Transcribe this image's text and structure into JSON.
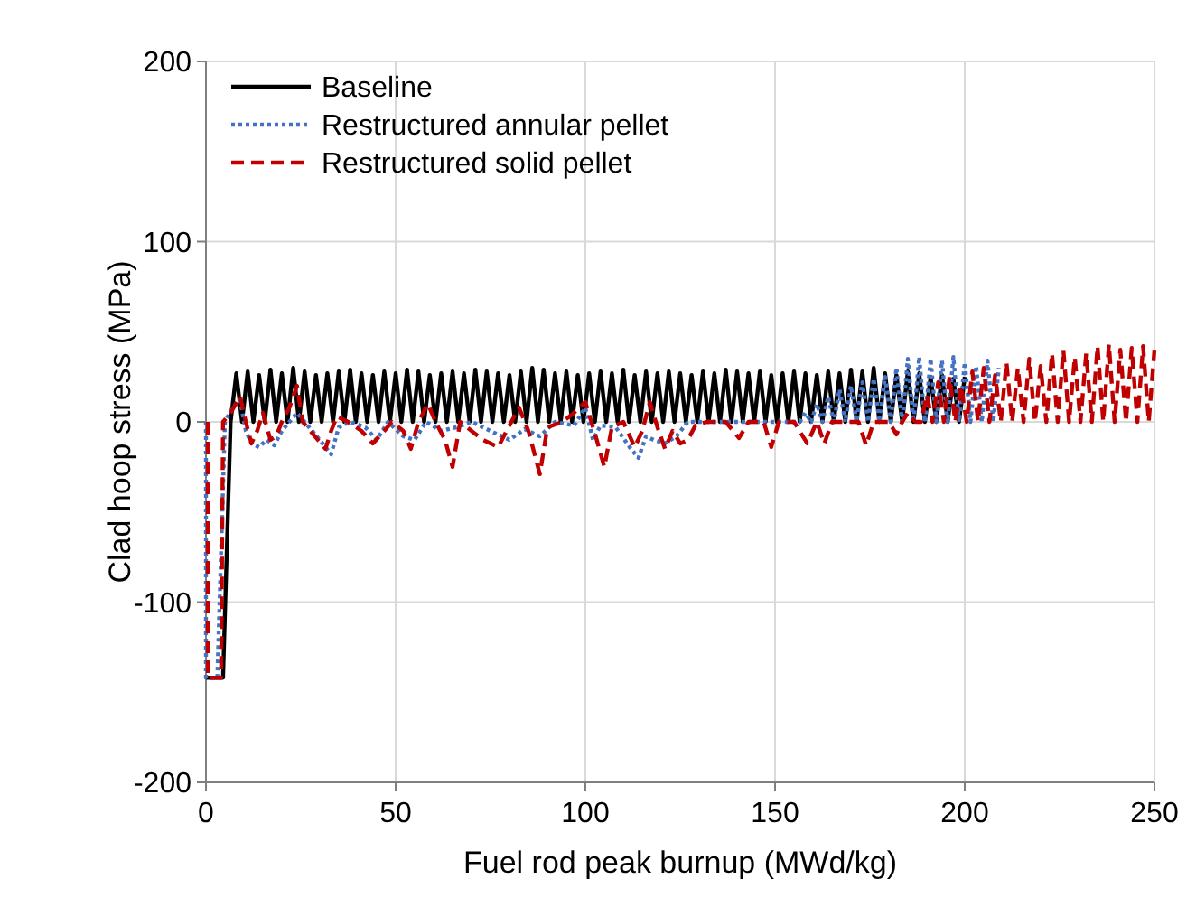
{
  "chart_data": {
    "type": "line",
    "xlabel": "Fuel rod peak burnup (MWd/kg)",
    "ylabel": "Clad hoop stress (MPa)",
    "xlim": [
      0,
      250
    ],
    "xticks": [
      0,
      50,
      100,
      150,
      200,
      250
    ],
    "ylim": [
      -200,
      200
    ],
    "yticks": [
      -200,
      -100,
      0,
      100,
      200
    ],
    "grid": true,
    "legend": "top left",
    "series": [
      {
        "name": "Baseline",
        "color": "#000000",
        "line_style": "solid",
        "x": [
          0,
          4.5,
          6.5,
          8,
          9.5,
          11,
          12.5,
          14,
          15.5,
          17,
          18.5,
          20,
          21.5,
          23,
          24.5,
          26,
          27.5,
          29,
          30.5,
          32,
          33.5,
          35,
          36.5,
          38,
          39.5,
          41,
          42.5,
          44,
          45.5,
          47,
          48.5,
          50,
          51.5,
          53,
          54.5,
          56,
          57.5,
          59,
          60.5,
          62,
          63.5,
          65,
          66.5,
          68,
          69.5,
          71,
          72.5,
          74,
          75.5,
          77,
          78.5,
          80,
          81.5,
          83,
          84.5,
          86,
          87.5,
          89,
          90.5,
          92,
          93.5,
          95,
          96.5,
          98,
          99.5,
          101,
          102.5,
          104,
          105.5,
          107,
          108.5,
          110,
          111.5,
          113,
          114.5,
          116,
          117.5,
          119,
          120.5,
          122,
          123.5,
          125,
          126.5,
          128,
          129.5,
          131,
          132.5,
          134,
          135.5,
          137,
          138.5,
          140,
          141.5,
          143,
          144.5,
          146,
          147.5,
          149,
          150.5,
          152,
          153.5,
          155,
          156.5,
          158,
          159.5,
          161,
          162.5,
          164,
          165.5,
          167,
          168.5,
          170,
          171.5,
          173,
          174.5,
          176,
          177.5,
          179,
          180.5,
          182,
          183.5,
          185,
          186.5,
          188,
          189.5,
          191,
          192.5,
          194,
          195.5,
          197,
          198.5,
          200
        ],
        "values": [
          -142,
          -142,
          0,
          27,
          0,
          28,
          0,
          26,
          0,
          29,
          0,
          27,
          0,
          30,
          0,
          28,
          0,
          26,
          0,
          27,
          0,
          28,
          0,
          29,
          0,
          27,
          0,
          26,
          0,
          28,
          0,
          27,
          0,
          29,
          0,
          28,
          0,
          26,
          0,
          27,
          0,
          28,
          0,
          27,
          0,
          29,
          0,
          28,
          0,
          27,
          0,
          26,
          0,
          28,
          0,
          30,
          0,
          29,
          0,
          27,
          0,
          28,
          0,
          26,
          0,
          27,
          0,
          28,
          0,
          27,
          0,
          29,
          0,
          26,
          0,
          28,
          0,
          27,
          0,
          28,
          0,
          27,
          0,
          26,
          0,
          28,
          0,
          27,
          0,
          29,
          0,
          28,
          0,
          27,
          0,
          28,
          0,
          26,
          0,
          27,
          0,
          28,
          0,
          27,
          0,
          26,
          0,
          28,
          0,
          27,
          0,
          29,
          0,
          28,
          0,
          30,
          0,
          27,
          0,
          26,
          0,
          28,
          0,
          27,
          0,
          25,
          0,
          26,
          0,
          24,
          0,
          25
        ]
      },
      {
        "name": "Restructured annular pellet",
        "color": "#4472c4",
        "line_style": "dotted",
        "x": [
          0,
          0,
          3,
          5,
          7,
          9,
          10.5,
          12,
          14,
          16,
          18,
          20,
          22,
          24,
          26,
          28,
          30,
          33,
          35,
          38,
          42,
          45,
          48,
          52,
          55,
          58,
          62,
          66,
          70,
          75,
          80,
          84,
          88,
          92,
          97,
          100,
          102,
          104,
          108,
          112,
          114,
          116,
          118,
          121,
          124,
          127,
          135,
          145,
          155,
          156.5,
          158,
          159.5,
          161,
          162.5,
          164,
          165.5,
          167,
          168.5,
          170,
          171.5,
          173,
          174.5,
          176,
          177.5,
          179,
          180.5,
          182,
          183.5,
          185,
          186.5,
          188,
          189.5,
          191,
          192.5,
          194,
          195.5,
          197,
          198.5,
          200,
          201.5,
          203,
          204.5,
          206,
          207.5,
          209
        ],
        "values": [
          0,
          -142,
          -142,
          0,
          8,
          12,
          -5,
          -12,
          -14,
          -10,
          -13,
          -5,
          0,
          5,
          0,
          -5,
          -10,
          -18,
          -3,
          0,
          -3,
          -10,
          0,
          -8,
          -10,
          0,
          -5,
          -3,
          0,
          -5,
          -10,
          -4,
          -8,
          0,
          -2,
          8,
          -10,
          -2,
          -3,
          -15,
          -20,
          -8,
          -10,
          -12,
          -8,
          0,
          0,
          0,
          0,
          0,
          5,
          0,
          10,
          0,
          14,
          0,
          18,
          0,
          20,
          0,
          22,
          0,
          24,
          0,
          25,
          0,
          30,
          0,
          35,
          0,
          36,
          0,
          35,
          0,
          34,
          0,
          36,
          0,
          33,
          0,
          31,
          0,
          34,
          0,
          30
        ]
      },
      {
        "name": "Restructured solid pellet",
        "color": "#c00000",
        "line_style": "dashed",
        "x": [
          0.5,
          0.5,
          4,
          4.5,
          6.5,
          9,
          10.5,
          12,
          13.5,
          15,
          17,
          18.5,
          20,
          22,
          24,
          25.5,
          27.5,
          29.5,
          31.5,
          33,
          34.5,
          37.5,
          41,
          44,
          47,
          49,
          52,
          54,
          56,
          58.5,
          60.5,
          63,
          65,
          67,
          70,
          73,
          77,
          80,
          82.5,
          85,
          88,
          90,
          94,
          97,
          100,
          103,
          105,
          107,
          110,
          113,
          115,
          117,
          119,
          121,
          123,
          125,
          127,
          129,
          132,
          137,
          140.5,
          143,
          147,
          149,
          151,
          155,
          158.5,
          161,
          163,
          165,
          172,
          174,
          176,
          180,
          182,
          183.5,
          185,
          187,
          188.5,
          190,
          191.5,
          193,
          194.5,
          196,
          197.5,
          199,
          200.5,
          202,
          203.5,
          205,
          206.5,
          208,
          209.5,
          211,
          212.5,
          214,
          215.5,
          217,
          218.5,
          220,
          221.5,
          223,
          224.5,
          226,
          227.5,
          229,
          230.5,
          232,
          233.5,
          235,
          236.5,
          238,
          239.5,
          241,
          242.5,
          244,
          245.5,
          247,
          248.5,
          250
        ],
        "values": [
          0,
          -142,
          -142,
          0,
          5,
          14,
          0,
          -12,
          -5,
          5,
          -10,
          -8,
          0,
          8,
          20,
          0,
          -5,
          -10,
          -15,
          -5,
          3,
          0,
          -5,
          -12,
          -5,
          0,
          -5,
          -15,
          0,
          10,
          0,
          -10,
          -25,
          0,
          -5,
          -10,
          -14,
          -2,
          8,
          -5,
          -29,
          -3,
          0,
          5,
          11,
          -10,
          -25,
          -3,
          0,
          -14,
          -5,
          11,
          -3,
          -15,
          -5,
          -12,
          -10,
          -2,
          0,
          0,
          -9,
          0,
          0,
          -14,
          0,
          0,
          -12,
          0,
          -12,
          0,
          0,
          -13,
          0,
          0,
          -7,
          0,
          5,
          0,
          0,
          15,
          0,
          22,
          0,
          25,
          0,
          20,
          0,
          28,
          0,
          30,
          0,
          26,
          0,
          33,
          0,
          30,
          0,
          35,
          0,
          31,
          0,
          38,
          0,
          40,
          0,
          36,
          0,
          38,
          0,
          42,
          0,
          43,
          0,
          40,
          0,
          41,
          0,
          42,
          0,
          40
        ]
      }
    ]
  }
}
